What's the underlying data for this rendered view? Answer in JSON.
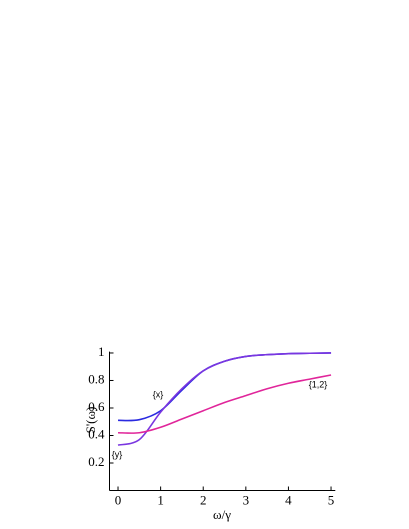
{
  "chart_data": {
    "type": "line",
    "x_label": "ω/γ",
    "y_label": "S'(ω)",
    "x": [
      0,
      0.5,
      1,
      1.5,
      2,
      2.5,
      3,
      3.5,
      4,
      4.5,
      5
    ],
    "series": [
      {
        "name": "{x}",
        "color": "#2a2ae0",
        "values": [
          0.51,
          0.515,
          0.58,
          0.73,
          0.87,
          0.94,
          0.975,
          0.988,
          0.995,
          0.998,
          1.0
        ]
      },
      {
        "name": "{y}",
        "color": "#7a36e0",
        "values": [
          0.33,
          0.37,
          0.57,
          0.74,
          0.87,
          0.94,
          0.975,
          0.988,
          0.995,
          0.998,
          1.0
        ]
      },
      {
        "name": "{1,2}",
        "color": "#e0259a",
        "values": [
          0.42,
          0.42,
          0.46,
          0.52,
          0.58,
          0.64,
          0.69,
          0.74,
          0.78,
          0.81,
          0.84
        ]
      }
    ],
    "xlim": [
      -0.2,
      5.1
    ],
    "ylim": [
      0,
      1.01
    ],
    "xticks": [
      0,
      1,
      2,
      3,
      4,
      5
    ],
    "yticks": [
      0.2,
      0.4,
      0.6,
      0.8,
      1
    ]
  }
}
